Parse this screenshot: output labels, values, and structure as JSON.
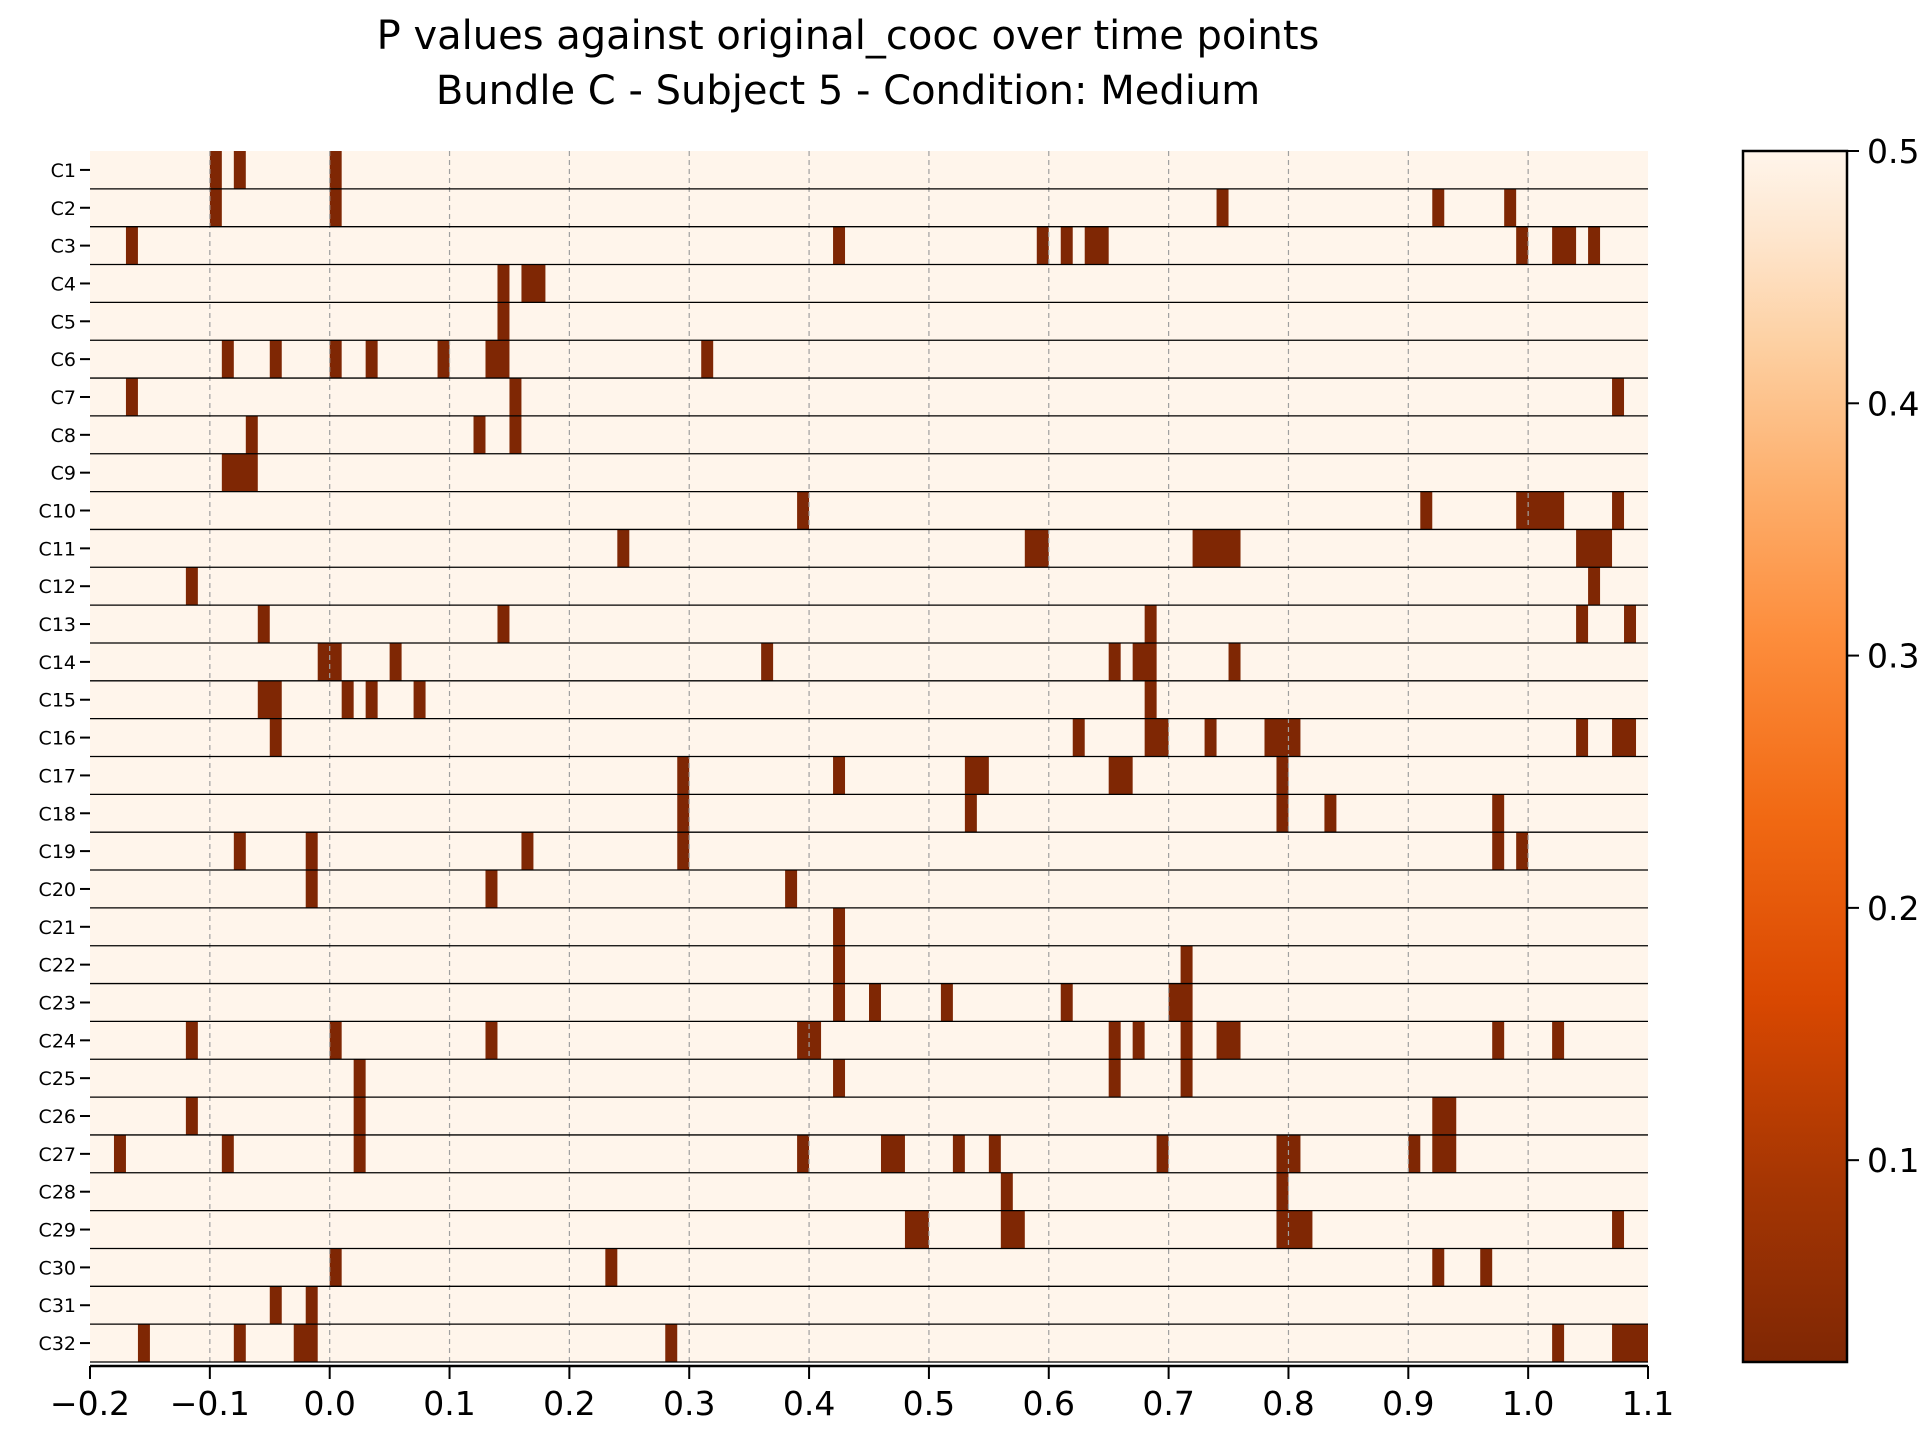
{
  "chart_data": {
    "type": "heatmap",
    "title": "P values against original_cooc over time points",
    "subtitle": "Bundle C - Subject 5 - Condition: Medium",
    "xlabel": "",
    "ylabel": "",
    "xlim": [
      -0.2,
      1.1
    ],
    "x_ticks": [
      "−0.2",
      "−0.1",
      "0.0",
      "0.1",
      "0.2",
      "0.3",
      "0.4",
      "0.5",
      "0.6",
      "0.7",
      "0.8",
      "0.9",
      "1.0",
      "1.1"
    ],
    "x_tick_values": [
      -0.2,
      -0.1,
      0.0,
      0.1,
      0.2,
      0.3,
      0.4,
      0.5,
      0.6,
      0.7,
      0.8,
      0.9,
      1.0,
      1.1
    ],
    "grid": "vertical dashed at x ticks",
    "bin_width": 0.01,
    "default_value": 0.5,
    "significant_value": 0.02,
    "colorscale": {
      "name": "Oranges_r",
      "range": [
        0.02,
        0.5
      ],
      "ticks": [
        "0.1",
        "0.2",
        "0.3",
        "0.4",
        "0.5"
      ],
      "tick_values": [
        0.1,
        0.2,
        0.3,
        0.4,
        0.5
      ],
      "stops": [
        {
          "v": 0.0,
          "color": "#7f2704"
        },
        {
          "v": 0.15,
          "color": "#a63603"
        },
        {
          "v": 0.3,
          "color": "#d94801"
        },
        {
          "v": 0.45,
          "color": "#f16913"
        },
        {
          "v": 0.6,
          "color": "#fd8d3c"
        },
        {
          "v": 0.72,
          "color": "#fdae6b"
        },
        {
          "v": 0.84,
          "color": "#fdd0a2"
        },
        {
          "v": 0.93,
          "color": "#fee6ce"
        },
        {
          "v": 1.0,
          "color": "#fff5eb"
        }
      ]
    },
    "rows": [
      {
        "label": "C1",
        "sig": [
          [
            -0.1,
            0.01
          ],
          [
            -0.08,
            0.01
          ],
          [
            0.0,
            0.01
          ]
        ]
      },
      {
        "label": "C2",
        "sig": [
          [
            -0.1,
            0.01
          ],
          [
            0.0,
            0.01
          ],
          [
            0.74,
            0.01
          ],
          [
            0.92,
            0.01
          ],
          [
            0.98,
            0.01
          ]
        ]
      },
      {
        "label": "C3",
        "sig": [
          [
            -0.17,
            0.01
          ],
          [
            0.42,
            0.01
          ],
          [
            0.59,
            0.01
          ],
          [
            0.61,
            0.01
          ],
          [
            0.63,
            0.02
          ],
          [
            0.99,
            0.01
          ],
          [
            1.02,
            0.02
          ],
          [
            1.05,
            0.01
          ]
        ]
      },
      {
        "label": "C4",
        "sig": [
          [
            0.14,
            0.01
          ],
          [
            0.16,
            0.02
          ]
        ]
      },
      {
        "label": "C5",
        "sig": [
          [
            0.14,
            0.01
          ]
        ]
      },
      {
        "label": "C6",
        "sig": [
          [
            -0.09,
            0.01
          ],
          [
            -0.05,
            0.01
          ],
          [
            0.0,
            0.01
          ],
          [
            0.03,
            0.01
          ],
          [
            0.09,
            0.01
          ],
          [
            0.13,
            0.02
          ],
          [
            0.31,
            0.01
          ]
        ]
      },
      {
        "label": "C7",
        "sig": [
          [
            -0.17,
            0.01
          ],
          [
            0.15,
            0.01
          ],
          [
            1.07,
            0.01
          ]
        ]
      },
      {
        "label": "C8",
        "sig": [
          [
            -0.07,
            0.01
          ],
          [
            0.12,
            0.01
          ],
          [
            0.15,
            0.01
          ]
        ]
      },
      {
        "label": "C9",
        "sig": [
          [
            -0.09,
            0.03
          ]
        ]
      },
      {
        "label": "C10",
        "sig": [
          [
            0.39,
            0.01
          ],
          [
            0.91,
            0.01
          ],
          [
            0.99,
            0.04
          ],
          [
            1.07,
            0.01
          ]
        ]
      },
      {
        "label": "C11",
        "sig": [
          [
            0.24,
            0.01
          ],
          [
            0.58,
            0.02
          ],
          [
            0.72,
            0.04
          ],
          [
            1.04,
            0.03
          ]
        ]
      },
      {
        "label": "C12",
        "sig": [
          [
            -0.12,
            0.01
          ],
          [
            1.05,
            0.01
          ]
        ]
      },
      {
        "label": "C13",
        "sig": [
          [
            -0.06,
            0.01
          ],
          [
            0.14,
            0.01
          ],
          [
            0.68,
            0.01
          ],
          [
            1.04,
            0.01
          ],
          [
            1.08,
            0.01
          ]
        ]
      },
      {
        "label": "C14",
        "sig": [
          [
            -0.01,
            0.02
          ],
          [
            0.05,
            0.01
          ],
          [
            0.36,
            0.01
          ],
          [
            0.65,
            0.01
          ],
          [
            0.67,
            0.02
          ],
          [
            0.75,
            0.01
          ]
        ]
      },
      {
        "label": "C15",
        "sig": [
          [
            -0.06,
            0.02
          ],
          [
            0.01,
            0.01
          ],
          [
            0.03,
            0.01
          ],
          [
            0.07,
            0.01
          ],
          [
            0.68,
            0.01
          ]
        ]
      },
      {
        "label": "C16",
        "sig": [
          [
            -0.05,
            0.01
          ],
          [
            0.62,
            0.01
          ],
          [
            0.68,
            0.02
          ],
          [
            0.73,
            0.01
          ],
          [
            0.78,
            0.03
          ],
          [
            1.04,
            0.01
          ],
          [
            1.07,
            0.02
          ]
        ]
      },
      {
        "label": "C17",
        "sig": [
          [
            0.29,
            0.01
          ],
          [
            0.42,
            0.01
          ],
          [
            0.53,
            0.02
          ],
          [
            0.65,
            0.02
          ],
          [
            0.79,
            0.01
          ]
        ]
      },
      {
        "label": "C18",
        "sig": [
          [
            0.29,
            0.01
          ],
          [
            0.53,
            0.01
          ],
          [
            0.79,
            0.01
          ],
          [
            0.83,
            0.01
          ],
          [
            0.97,
            0.01
          ]
        ]
      },
      {
        "label": "C19",
        "sig": [
          [
            -0.08,
            0.01
          ],
          [
            -0.02,
            0.01
          ],
          [
            0.16,
            0.01
          ],
          [
            0.29,
            0.01
          ],
          [
            0.97,
            0.01
          ],
          [
            0.99,
            0.01
          ]
        ]
      },
      {
        "label": "C20",
        "sig": [
          [
            -0.02,
            0.01
          ],
          [
            0.13,
            0.01
          ],
          [
            0.38,
            0.01
          ]
        ]
      },
      {
        "label": "C21",
        "sig": [
          [
            0.42,
            0.01
          ]
        ]
      },
      {
        "label": "C22",
        "sig": [
          [
            0.42,
            0.01
          ],
          [
            0.71,
            0.01
          ]
        ]
      },
      {
        "label": "C23",
        "sig": [
          [
            0.42,
            0.01
          ],
          [
            0.45,
            0.01
          ],
          [
            0.51,
            0.01
          ],
          [
            0.61,
            0.01
          ],
          [
            0.7,
            0.02
          ]
        ]
      },
      {
        "label": "C24",
        "sig": [
          [
            -0.12,
            0.01
          ],
          [
            0.0,
            0.01
          ],
          [
            0.13,
            0.01
          ],
          [
            0.39,
            0.02
          ],
          [
            0.65,
            0.01
          ],
          [
            0.67,
            0.01
          ],
          [
            0.71,
            0.01
          ],
          [
            0.74,
            0.02
          ],
          [
            0.97,
            0.01
          ],
          [
            1.02,
            0.01
          ]
        ]
      },
      {
        "label": "C25",
        "sig": [
          [
            0.02,
            0.01
          ],
          [
            0.42,
            0.01
          ],
          [
            0.65,
            0.01
          ],
          [
            0.71,
            0.01
          ]
        ]
      },
      {
        "label": "C26",
        "sig": [
          [
            -0.12,
            0.01
          ],
          [
            0.02,
            0.01
          ],
          [
            0.92,
            0.02
          ]
        ]
      },
      {
        "label": "C27",
        "sig": [
          [
            -0.18,
            0.01
          ],
          [
            -0.09,
            0.01
          ],
          [
            0.02,
            0.01
          ],
          [
            0.39,
            0.01
          ],
          [
            0.46,
            0.02
          ],
          [
            0.52,
            0.01
          ],
          [
            0.55,
            0.01
          ],
          [
            0.69,
            0.01
          ],
          [
            0.79,
            0.02
          ],
          [
            0.9,
            0.01
          ],
          [
            0.92,
            0.02
          ]
        ]
      },
      {
        "label": "C28",
        "sig": [
          [
            0.56,
            0.01
          ],
          [
            0.79,
            0.01
          ]
        ]
      },
      {
        "label": "C29",
        "sig": [
          [
            0.48,
            0.02
          ],
          [
            0.56,
            0.02
          ],
          [
            0.79,
            0.03
          ],
          [
            1.07,
            0.01
          ]
        ]
      },
      {
        "label": "C30",
        "sig": [
          [
            0.0,
            0.01
          ],
          [
            0.23,
            0.01
          ],
          [
            0.92,
            0.01
          ],
          [
            0.96,
            0.01
          ]
        ]
      },
      {
        "label": "C31",
        "sig": [
          [
            -0.05,
            0.01
          ],
          [
            -0.02,
            0.01
          ]
        ]
      },
      {
        "label": "C32",
        "sig": [
          [
            -0.16,
            0.01
          ],
          [
            -0.08,
            0.01
          ],
          [
            -0.03,
            0.02
          ],
          [
            0.28,
            0.01
          ],
          [
            1.02,
            0.01
          ],
          [
            1.07,
            0.03
          ]
        ]
      }
    ]
  }
}
